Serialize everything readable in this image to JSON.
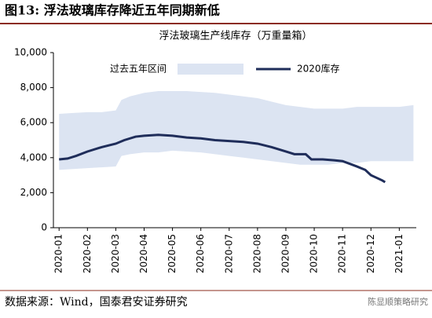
{
  "header": {
    "title": "图13: 浮法玻璃库存降近五年同期新低"
  },
  "chart_data": {
    "type": "line",
    "title": "浮法玻璃生产线库存（万重量箱）",
    "xlim": [
      -0.2,
      12.6
    ],
    "xticks": [
      {
        "value": 0,
        "label": "2020-01"
      },
      {
        "value": 1,
        "label": "2020-02"
      },
      {
        "value": 2,
        "label": "2020-03"
      },
      {
        "value": 3,
        "label": "2020-04"
      },
      {
        "value": 4,
        "label": "2020-05"
      },
      {
        "value": 5,
        "label": "2020-06"
      },
      {
        "value": 6,
        "label": "2020-07"
      },
      {
        "value": 7,
        "label": "2020-08"
      },
      {
        "value": 8,
        "label": "2020-09"
      },
      {
        "value": 9,
        "label": "2020-10"
      },
      {
        "value": 10,
        "label": "2020-11"
      },
      {
        "value": 11,
        "label": "2020-12"
      },
      {
        "value": 12,
        "label": "2021-01"
      }
    ],
    "ylim": [
      0,
      10000
    ],
    "yticks": [
      0,
      {
        "value": 2000,
        "label": "2,000"
      },
      {
        "value": 4000,
        "label": "4,000"
      },
      {
        "value": 6000,
        "label": "6,000"
      },
      {
        "value": 8000,
        "label": "8,000"
      },
      {
        "value": 10000,
        "label": "10,000"
      }
    ],
    "band": {
      "name": "过去五年区间",
      "color": "#dce4f2",
      "x": [
        0,
        0.5,
        1,
        1.5,
        2,
        2.2,
        2.5,
        3,
        3.5,
        4,
        4.5,
        5,
        5.5,
        6,
        6.5,
        7,
        7.5,
        8,
        8.5,
        9,
        9.5,
        10,
        10.5,
        11,
        11.5,
        12,
        12.5
      ],
      "upper": [
        6500,
        6550,
        6600,
        6600,
        6700,
        7300,
        7500,
        7700,
        7800,
        7800,
        7800,
        7750,
        7700,
        7600,
        7500,
        7400,
        7200,
        7000,
        6900,
        6800,
        6800,
        6800,
        6900,
        6900,
        6900,
        6900,
        7000
      ],
      "lower": [
        3300,
        3350,
        3400,
        3450,
        3500,
        4100,
        4200,
        4300,
        4300,
        4400,
        4350,
        4300,
        4200,
        4100,
        4000,
        3900,
        3800,
        3700,
        3600,
        3600,
        3600,
        3700,
        3700,
        3800,
        3800,
        3800,
        3800
      ]
    },
    "series": [
      {
        "name": "2020库存",
        "color": "#1f2d5a",
        "x": [
          0,
          0.3,
          0.6,
          1,
          1.5,
          2,
          2.3,
          2.7,
          3,
          3.5,
          4,
          4.5,
          5,
          5.5,
          6,
          6.5,
          7,
          7.5,
          8,
          8.3,
          8.7,
          8.9,
          9.3,
          9.7,
          10,
          10.5,
          10.8,
          11,
          11.2,
          11.4,
          11.5
        ],
        "values": [
          3900,
          3950,
          4100,
          4350,
          4600,
          4800,
          5000,
          5200,
          5250,
          5300,
          5250,
          5150,
          5100,
          5000,
          4950,
          4900,
          4800,
          4600,
          4350,
          4200,
          4200,
          3900,
          3900,
          3850,
          3800,
          3500,
          3300,
          3000,
          2850,
          2700,
          2600
        ]
      }
    ]
  },
  "footer": {
    "source": "数据来源：Wind，国泰君安证券研究",
    "watermark": "陈显顺策略研究"
  }
}
